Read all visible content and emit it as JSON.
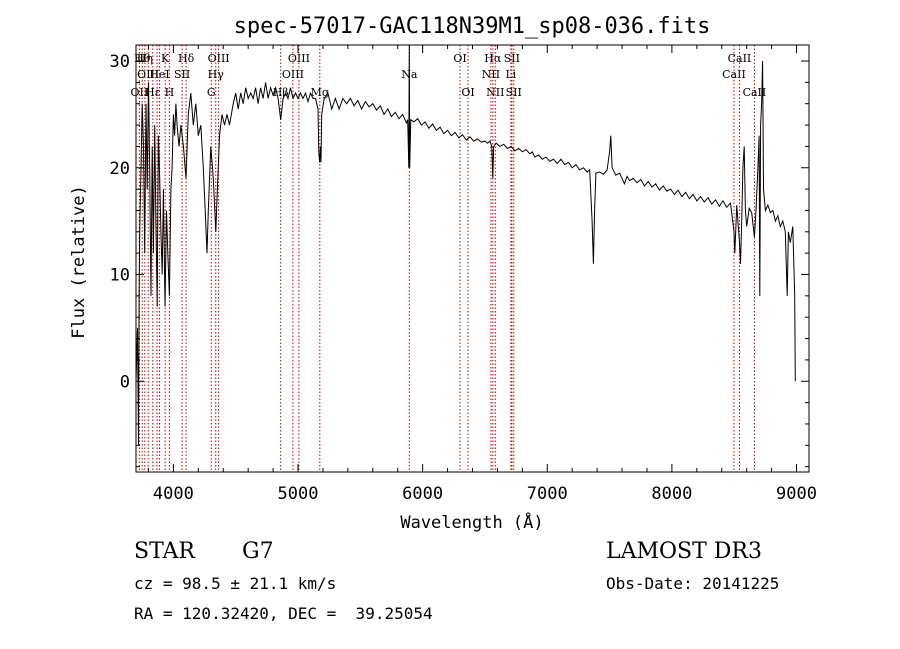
{
  "chart_data": {
    "type": "line",
    "title": "spec-57017-GAC118N39M1_sp08-036.fits",
    "xlabel": "Wavelength (Å)",
    "ylabel": "Flux (relative)",
    "xlim": [
      3700,
      9100
    ],
    "ylim": [
      -8.5,
      31.5
    ],
    "x_ticks": [
      4000,
      5000,
      6000,
      7000,
      8000,
      9000
    ],
    "x_tick_labels": [
      "4000",
      "5000",
      "6000",
      "7000",
      "8000",
      "9000"
    ],
    "y_ticks": [
      0,
      10,
      20,
      30
    ],
    "y_tick_labels": [
      "0",
      "10",
      "20",
      "30"
    ],
    "grid": false,
    "line_color": "#000000",
    "marker_color": "#c00000",
    "series": [
      {
        "values": [
          [
            3700,
            0
          ],
          [
            3712,
            5
          ],
          [
            3720,
            -6
          ],
          [
            3725,
            8
          ],
          [
            3730,
            14
          ],
          [
            3740,
            20
          ],
          [
            3750,
            26
          ],
          [
            3760,
            22
          ],
          [
            3770,
            12
          ],
          [
            3780,
            26
          ],
          [
            3790,
            18
          ],
          [
            3800,
            28
          ],
          [
            3810,
            20
          ],
          [
            3815,
            14
          ],
          [
            3820,
            8
          ],
          [
            3830,
            22
          ],
          [
            3840,
            12
          ],
          [
            3850,
            24
          ],
          [
            3860,
            15
          ],
          [
            3870,
            7
          ],
          [
            3880,
            23
          ],
          [
            3890,
            19
          ],
          [
            3900,
            14
          ],
          [
            3910,
            10
          ],
          [
            3920,
            18
          ],
          [
            3933,
            7
          ],
          [
            3945,
            16
          ],
          [
            3955,
            12
          ],
          [
            3968,
            8
          ],
          [
            3980,
            18
          ],
          [
            3990,
            20
          ],
          [
            4000,
            25
          ],
          [
            4010,
            23
          ],
          [
            4020,
            26
          ],
          [
            4030,
            24
          ],
          [
            4045,
            22
          ],
          [
            4060,
            24
          ],
          [
            4080,
            22
          ],
          [
            4101,
            19
          ],
          [
            4120,
            25
          ],
          [
            4140,
            27
          ],
          [
            4160,
            24
          ],
          [
            4180,
            26
          ],
          [
            4200,
            23
          ],
          [
            4220,
            24
          ],
          [
            4240,
            20
          ],
          [
            4255,
            16
          ],
          [
            4270,
            12
          ],
          [
            4280,
            16
          ],
          [
            4300,
            22
          ],
          [
            4320,
            19
          ],
          [
            4340,
            14
          ],
          [
            4350,
            17
          ],
          [
            4370,
            23
          ],
          [
            4390,
            25
          ],
          [
            4410,
            24
          ],
          [
            4430,
            25
          ],
          [
            4450,
            24
          ],
          [
            4480,
            26
          ],
          [
            4500,
            27
          ],
          [
            4520,
            25.5
          ],
          [
            4540,
            27
          ],
          [
            4560,
            26
          ],
          [
            4580,
            27.5
          ],
          [
            4600,
            26.5
          ],
          [
            4620,
            27
          ],
          [
            4640,
            26.5
          ],
          [
            4660,
            27.5
          ],
          [
            4680,
            26
          ],
          [
            4700,
            27.5
          ],
          [
            4720,
            26.5
          ],
          [
            4740,
            28
          ],
          [
            4760,
            26.5
          ],
          [
            4780,
            27.5
          ],
          [
            4800,
            26.8
          ],
          [
            4820,
            27.5
          ],
          [
            4840,
            26.5
          ],
          [
            4861,
            24.5
          ],
          [
            4880,
            26.5
          ],
          [
            4900,
            27
          ],
          [
            4920,
            26.5
          ],
          [
            4940,
            27.5
          ],
          [
            4960,
            26.5
          ],
          [
            4980,
            27
          ],
          [
            5000,
            26.5
          ],
          [
            5020,
            27
          ],
          [
            5040,
            26.5
          ],
          [
            5060,
            27
          ],
          [
            5080,
            26.2
          ],
          [
            5100,
            27
          ],
          [
            5120,
            26.5
          ],
          [
            5140,
            26.5
          ],
          [
            5160,
            25.5
          ],
          [
            5167,
            21.5
          ],
          [
            5173,
            20.5
          ],
          [
            5180,
            22
          ],
          [
            5184,
            20.5
          ],
          [
            5190,
            25
          ],
          [
            5210,
            26.5
          ],
          [
            5240,
            27
          ],
          [
            5270,
            25.5
          ],
          [
            5300,
            26.5
          ],
          [
            5330,
            25.5
          ],
          [
            5360,
            26.5
          ],
          [
            5390,
            26
          ],
          [
            5420,
            26.5
          ],
          [
            5450,
            25.8
          ],
          [
            5480,
            26.3
          ],
          [
            5510,
            25.5
          ],
          [
            5540,
            26.2
          ],
          [
            5570,
            25.7
          ],
          [
            5600,
            26
          ],
          [
            5630,
            25.4
          ],
          [
            5660,
            25.8
          ],
          [
            5690,
            25
          ],
          [
            5720,
            25.5
          ],
          [
            5750,
            24.8
          ],
          [
            5780,
            25.2
          ],
          [
            5810,
            24.6
          ],
          [
            5840,
            25
          ],
          [
            5870,
            24.2
          ],
          [
            5880,
            24.5
          ],
          [
            5889,
            20
          ],
          [
            5893,
            33
          ],
          [
            5896,
            20
          ],
          [
            5905,
            24.5
          ],
          [
            5930,
            24.3
          ],
          [
            5960,
            24.6
          ],
          [
            5990,
            24
          ],
          [
            6020,
            24.3
          ],
          [
            6050,
            23.7
          ],
          [
            6080,
            24.1
          ],
          [
            6110,
            23.5
          ],
          [
            6140,
            23.8
          ],
          [
            6170,
            23.2
          ],
          [
            6200,
            23.5
          ],
          [
            6230,
            23
          ],
          [
            6260,
            23.3
          ],
          [
            6290,
            22.8
          ],
          [
            6320,
            23.1
          ],
          [
            6350,
            22.6
          ],
          [
            6380,
            22.9
          ],
          [
            6410,
            22.5
          ],
          [
            6440,
            22.7
          ],
          [
            6470,
            22.4
          ],
          [
            6500,
            22.5
          ],
          [
            6520,
            22.3
          ],
          [
            6540,
            22.5
          ],
          [
            6555,
            22
          ],
          [
            6563,
            19
          ],
          [
            6570,
            22
          ],
          [
            6590,
            22.3
          ],
          [
            6620,
            22
          ],
          [
            6650,
            22.2
          ],
          [
            6680,
            21.8
          ],
          [
            6710,
            22
          ],
          [
            6740,
            21.6
          ],
          [
            6770,
            21.8
          ],
          [
            6800,
            21.5
          ],
          [
            6830,
            21.7
          ],
          [
            6860,
            21.3
          ],
          [
            6880,
            21.5
          ],
          [
            6900,
            21
          ],
          [
            6930,
            21.2
          ],
          [
            6960,
            20.8
          ],
          [
            6990,
            21
          ],
          [
            7020,
            20.6
          ],
          [
            7050,
            20.8
          ],
          [
            7080,
            20.4
          ],
          [
            7110,
            20.8
          ],
          [
            7140,
            20.3
          ],
          [
            7170,
            20.5
          ],
          [
            7200,
            20
          ],
          [
            7230,
            20.3
          ],
          [
            7260,
            19.8
          ],
          [
            7290,
            20
          ],
          [
            7320,
            19.6
          ],
          [
            7340,
            19.8
          ],
          [
            7360,
            15
          ],
          [
            7370,
            11
          ],
          [
            7380,
            16
          ],
          [
            7390,
            19.5
          ],
          [
            7420,
            19.6
          ],
          [
            7450,
            19.4
          ],
          [
            7480,
            19.8
          ],
          [
            7500,
            21.5
          ],
          [
            7510,
            23
          ],
          [
            7520,
            20
          ],
          [
            7550,
            19.3
          ],
          [
            7580,
            19.5
          ],
          [
            7600,
            19
          ],
          [
            7620,
            18.5
          ],
          [
            7640,
            19.2
          ],
          [
            7660,
            18.8
          ],
          [
            7690,
            19
          ],
          [
            7720,
            18.6
          ],
          [
            7750,
            18.9
          ],
          [
            7780,
            18.3
          ],
          [
            7810,
            18.7
          ],
          [
            7840,
            18.2
          ],
          [
            7870,
            18.5
          ],
          [
            7900,
            17.9
          ],
          [
            7930,
            18.3
          ],
          [
            7960,
            17.8
          ],
          [
            7990,
            18
          ],
          [
            8020,
            17.5
          ],
          [
            8050,
            17.9
          ],
          [
            8080,
            17.3
          ],
          [
            8110,
            17.7
          ],
          [
            8140,
            17.1
          ],
          [
            8170,
            17.5
          ],
          [
            8200,
            16.9
          ],
          [
            8230,
            17.3
          ],
          [
            8260,
            16.8
          ],
          [
            8290,
            17.2
          ],
          [
            8320,
            16.6
          ],
          [
            8350,
            17
          ],
          [
            8380,
            16.4
          ],
          [
            8410,
            16.9
          ],
          [
            8440,
            16.3
          ],
          [
            8470,
            16.7
          ],
          [
            8498,
            14
          ],
          [
            8505,
            12
          ],
          [
            8512,
            14
          ],
          [
            8520,
            16.5
          ],
          [
            8542,
            13
          ],
          [
            8550,
            11
          ],
          [
            8560,
            15
          ],
          [
            8570,
            20
          ],
          [
            8580,
            22
          ],
          [
            8590,
            16
          ],
          [
            8600,
            14.5
          ],
          [
            8620,
            16.2
          ],
          [
            8640,
            15.8
          ],
          [
            8662,
            13.5
          ],
          [
            8675,
            16
          ],
          [
            8690,
            20
          ],
          [
            8700,
            23
          ],
          [
            8705,
            8
          ],
          [
            8712,
            24
          ],
          [
            8720,
            26
          ],
          [
            8728,
            30
          ],
          [
            8735,
            18
          ],
          [
            8750,
            16
          ],
          [
            8770,
            16.5
          ],
          [
            8790,
            15.8
          ],
          [
            8810,
            16
          ],
          [
            8830,
            15
          ],
          [
            8850,
            15.5
          ],
          [
            8870,
            14.5
          ],
          [
            8890,
            15
          ],
          [
            8910,
            14
          ],
          [
            8925,
            8
          ],
          [
            8935,
            14
          ],
          [
            8950,
            13
          ],
          [
            8970,
            14.5
          ],
          [
            8985,
            8
          ],
          [
            8990,
            0
          ]
        ]
      }
    ],
    "line_markers": [
      {
        "w": 3727,
        "label": "OII",
        "row": 3
      },
      {
        "w": 3750,
        "label": "Hθ",
        "row": 1
      },
      {
        "w": 3771,
        "label": "Hη",
        "row": 1
      },
      {
        "w": 3798,
        "label": "OIII",
        "row": 2
      },
      {
        "w": 3835,
        "label": "Hε",
        "row": 3
      },
      {
        "w": 3869,
        "label": "",
        "row": 0
      },
      {
        "w": 3889,
        "label": "HeI",
        "row": 2
      },
      {
        "w": 3934,
        "label": "K",
        "row": 1
      },
      {
        "w": 3968,
        "label": "H",
        "row": 3
      },
      {
        "w": 4070,
        "label": "SII",
        "row": 2
      },
      {
        "w": 4102,
        "label": "Hδ",
        "row": 1
      },
      {
        "w": 4304,
        "label": "G",
        "row": 3
      },
      {
        "w": 4340,
        "label": "Hγ",
        "row": 2
      },
      {
        "w": 4363,
        "label": "OIII",
        "row": 1
      },
      {
        "w": 4861,
        "label": "Hβ",
        "row": 3
      },
      {
        "w": 4959,
        "label": "OIII",
        "row": 2
      },
      {
        "w": 5007,
        "label": "OIII",
        "row": 1
      },
      {
        "w": 5175,
        "label": "Mg",
        "row": 3
      },
      {
        "w": 5893,
        "label": "Na",
        "row": 2
      },
      {
        "w": 6300,
        "label": "OI",
        "row": 1
      },
      {
        "w": 6364,
        "label": "OI",
        "row": 3
      },
      {
        "w": 6548,
        "label": "NII",
        "row": 2
      },
      {
        "w": 6563,
        "label": "Hα",
        "row": 1
      },
      {
        "w": 6583,
        "label": "NII",
        "row": 3
      },
      {
        "w": 6708,
        "label": "Li",
        "row": 2
      },
      {
        "w": 6716,
        "label": "SII",
        "row": 1
      },
      {
        "w": 6731,
        "label": "SII",
        "row": 3
      },
      {
        "w": 8498,
        "label": "CaII",
        "row": 2
      },
      {
        "w": 8542,
        "label": "CaII",
        "row": 1
      },
      {
        "w": 8662,
        "label": "CaII",
        "row": 3
      }
    ]
  },
  "info": {
    "object_type": "STAR",
    "subclass": "G7",
    "survey": "LAMOST DR3",
    "cz": "cz = 98.5 ± 21.1 km/s",
    "obs_date": "Obs-Date: 20141225",
    "radec": "RA = 120.32420, DEC =  39.25054"
  }
}
